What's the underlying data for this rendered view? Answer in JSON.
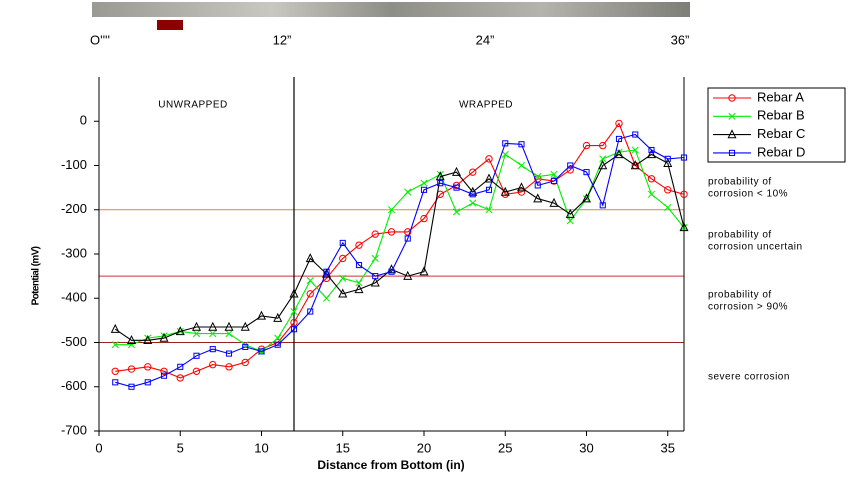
{
  "chart_data": {
    "type": "line",
    "x_label": "Distance from Bottom (in)",
    "y_label": "Potential (mV)",
    "xlim": [
      0,
      36
    ],
    "xticks": [
      0,
      5,
      10,
      15,
      20,
      25,
      30,
      35
    ],
    "ylim": [
      -700,
      100
    ],
    "yticks": [
      -700,
      -600,
      -500,
      -400,
      -300,
      -200,
      -100,
      0
    ],
    "x": [
      1,
      2,
      3,
      4,
      5,
      6,
      7,
      8,
      9,
      10,
      11,
      12,
      13,
      14,
      15,
      16,
      17,
      18,
      19,
      20,
      21,
      22,
      23,
      24,
      25,
      26,
      27,
      28,
      29,
      30,
      31,
      32,
      33,
      34,
      35,
      36
    ],
    "series": [
      {
        "name": "Rebar A",
        "color": "#ff0000",
        "marker": "circle",
        "values": [
          -565,
          -560,
          -555,
          -565,
          -580,
          -565,
          -550,
          -555,
          -545,
          -515,
          -500,
          -455,
          -390,
          -355,
          -310,
          -280,
          -255,
          -250,
          -250,
          -220,
          -165,
          -145,
          -115,
          -85,
          -165,
          -160,
          -130,
          -135,
          -110,
          -55,
          -55,
          -5,
          -100,
          -130,
          -155,
          -165
        ]
      },
      {
        "name": "Rebar B",
        "color": "#00ee00",
        "marker": "x",
        "values": [
          -505,
          -505,
          -490,
          -485,
          -475,
          -480,
          -480,
          -480,
          -505,
          -520,
          -490,
          -430,
          -360,
          -400,
          -355,
          -365,
          -310,
          -200,
          -160,
          -140,
          -120,
          -205,
          -185,
          -200,
          -75,
          -100,
          -125,
          -120,
          -225,
          -175,
          -85,
          -70,
          -65,
          -165,
          -195,
          -240
        ]
      },
      {
        "name": "Rebar C",
        "color": "#000000",
        "marker": "triangle",
        "values": [
          -470,
          -495,
          -495,
          -490,
          -475,
          -465,
          -465,
          -465,
          -465,
          -440,
          -445,
          -390,
          -310,
          -345,
          -390,
          -380,
          -365,
          -335,
          -350,
          -340,
          -125,
          -115,
          -160,
          -130,
          -160,
          -150,
          -175,
          -185,
          -210,
          -175,
          -100,
          -75,
          -100,
          -75,
          -95,
          -240
        ]
      },
      {
        "name": "Rebar D",
        "color": "#0000ff",
        "marker": "square",
        "values": [
          -590,
          -600,
          -590,
          -575,
          -555,
          -530,
          -515,
          -525,
          -510,
          -520,
          -505,
          -470,
          -430,
          -340,
          -275,
          -325,
          -350,
          -340,
          -265,
          -155,
          -140,
          -150,
          -165,
          -155,
          -50,
          -52,
          -145,
          -135,
          -100,
          -115,
          -190,
          -40,
          -30,
          -65,
          -85,
          -82
        ]
      }
    ],
    "reference_lines": [
      {
        "value": -200,
        "color": "#d98c2b"
      },
      {
        "value": -350,
        "color": "#cc3333"
      },
      {
        "value": -500,
        "color": "#992222"
      }
    ],
    "divider_x": 12,
    "region_labels": [
      "UNWRAPPED",
      "WRAPPED"
    ],
    "zone_labels": [
      [
        "probability of",
        "corrosion < 10%"
      ],
      [
        "probability of",
        "corrosion uncertain"
      ],
      [
        "probability of",
        "corrosion > 90%"
      ],
      [
        "severe corrosion"
      ]
    ],
    "strip_labels": [
      "O''''",
      "12”",
      "24”",
      "36”"
    ]
  }
}
